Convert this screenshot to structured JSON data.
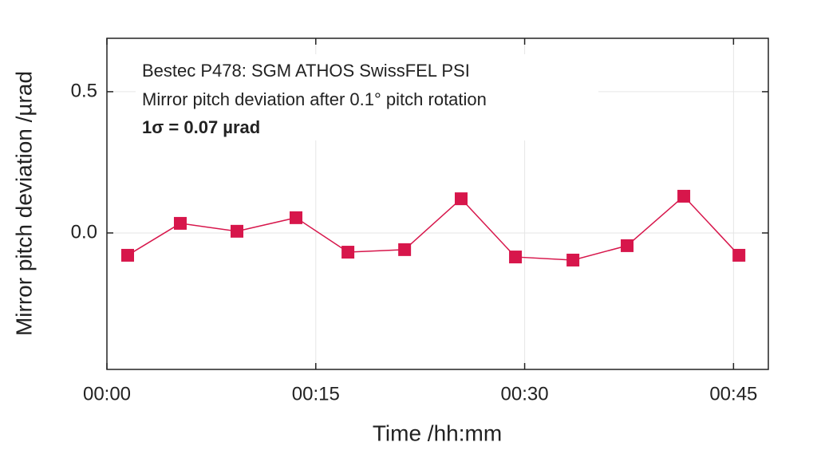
{
  "chart_data": {
    "type": "line",
    "annotations": [
      "Bestec P478: SGM ATHOS SwissFEL PSI",
      "Mirror pitch deviation after 0.1° pitch rotation",
      "1σ = 0.07 µrad"
    ],
    "x_label": "Time /hh:mm",
    "y_label": "Mirror pitch deviation /µrad",
    "x": [
      1.49,
      5.27,
      9.34,
      13.58,
      17.31,
      21.38,
      25.44,
      29.34,
      33.47,
      37.36,
      41.43,
      45.39
    ],
    "series": [
      {
        "color": "#d7164b",
        "values": [
          -0.079,
          0.034,
          0.006,
          0.054,
          -0.068,
          -0.059,
          0.121,
          -0.085,
          -0.096,
          -0.045,
          0.13,
          -0.079
        ]
      }
    ],
    "xlim": [
      0,
      47.5
    ],
    "ylim": [
      -0.483,
      0.689
    ],
    "xticks": [
      {
        "value": 0,
        "label": "00:00"
      },
      {
        "value": 15,
        "label": "00:15"
      },
      {
        "value": 30,
        "label": "00:30"
      },
      {
        "value": 45,
        "label": "00:45"
      }
    ],
    "yticks": [
      {
        "value": 0,
        "label": "0.0"
      },
      {
        "value": 0.5,
        "label": "0.5"
      }
    ],
    "grid": true
  }
}
